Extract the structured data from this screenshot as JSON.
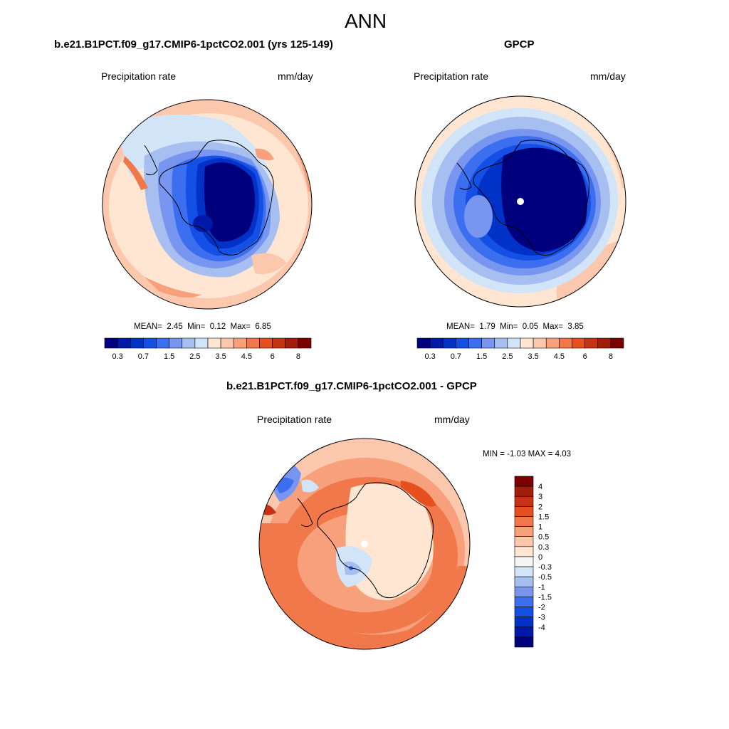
{
  "page": {
    "title": "ANN"
  },
  "colors": {
    "abs_scale": [
      "#00007f",
      "#0019a6",
      "#0032c8",
      "#1450e6",
      "#3c6ef0",
      "#7896f0",
      "#a6bef0",
      "#d2e4f8",
      "#ffe6d2",
      "#fbc8ae",
      "#f8a07c",
      "#f0784b",
      "#e6501e",
      "#c83214",
      "#a01e0a",
      "#7a0000"
    ],
    "diff_scale": [
      "#00007f",
      "#0019a6",
      "#0032c8",
      "#1450e6",
      "#3c6ef0",
      "#7896f0",
      "#a6bef0",
      "#d2e4f8",
      "#f5f5f5",
      "#ffe6d2",
      "#fbc8ae",
      "#f8a07c",
      "#f0784b",
      "#e6501e",
      "#c83214",
      "#a01e0a",
      "#7a0000"
    ],
    "coastline": "#000000"
  },
  "panels": {
    "model": {
      "title": "b.e21.B1PCT.f09_g17.CMIP6-1pctCO2.001 (yrs 125-149)",
      "variable": "Precipitation rate",
      "units": "mm/day",
      "stats_label_mean": "MEAN=",
      "stats_mean": "2.45",
      "stats_label_min": "Min=",
      "stats_min": "0.12",
      "stats_label_max": "Max=",
      "stats_max": "6.85",
      "colorbar_ticks": [
        "0.3",
        "0.7",
        "1.5",
        "2.5",
        "3.5",
        "4.5",
        "6",
        "8"
      ]
    },
    "obs": {
      "title": "GPCP",
      "variable": "Precipitation rate",
      "units": "mm/day",
      "stats_label_mean": "MEAN=",
      "stats_mean": "1.79",
      "stats_label_min": "Min=",
      "stats_min": "0.05",
      "stats_label_max": "Max=",
      "stats_max": "3.85",
      "colorbar_ticks": [
        "0.3",
        "0.7",
        "1.5",
        "2.5",
        "3.5",
        "4.5",
        "6",
        "8"
      ]
    },
    "diff": {
      "title": "b.e21.B1PCT.f09_g17.CMIP6-1pctCO2.001 - GPCP",
      "variable": "Precipitation rate",
      "units": "mm/day",
      "min_max_text": "MIN =  -1.03 MAX =   4.03",
      "colorbar_ticks": [
        "4",
        "3",
        "2",
        "1.5",
        "1",
        "0.5",
        "0.3",
        "0",
        "-0.3",
        "-0.5",
        "-1",
        "-1.5",
        "-2",
        "-3",
        "-4"
      ]
    }
  }
}
